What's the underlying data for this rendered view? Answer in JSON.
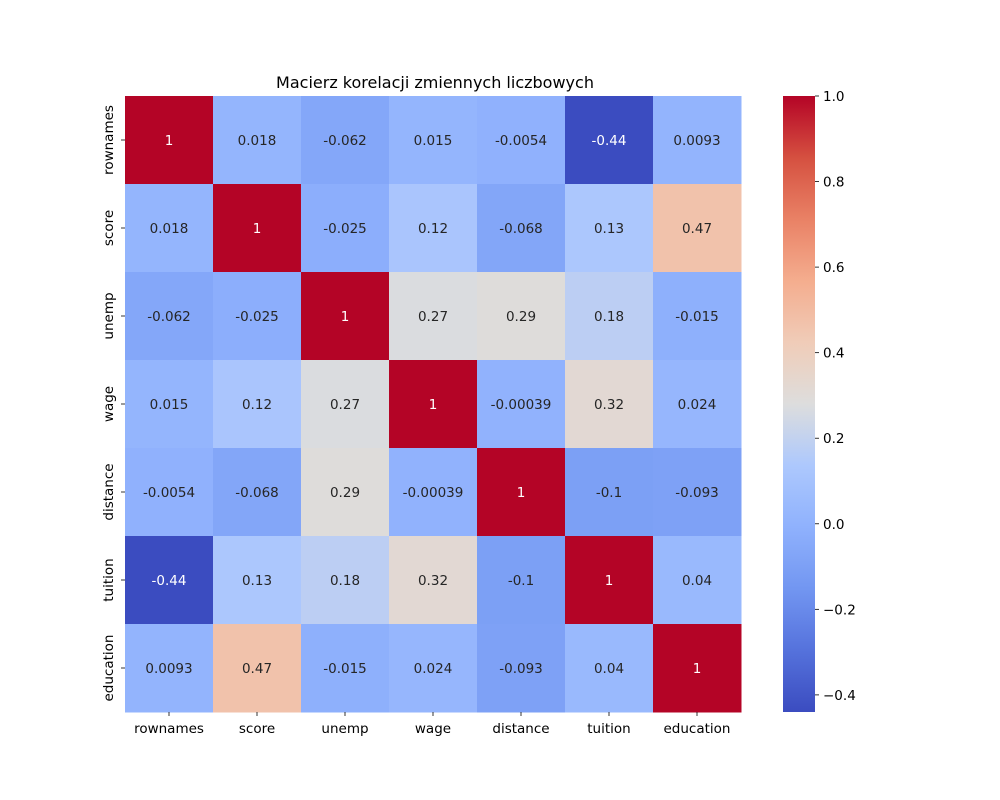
{
  "chart_data": {
    "type": "heatmap",
    "title": "Macierz korelacji zmiennych liczbowych",
    "xlabel": "",
    "ylabel": "",
    "categories": [
      "rownames",
      "score",
      "unemp",
      "wage",
      "distance",
      "tuition",
      "education"
    ],
    "values": [
      [
        1,
        0.018,
        -0.062,
        0.015,
        -0.0054,
        -0.44,
        0.0093
      ],
      [
        0.018,
        1,
        -0.025,
        0.12,
        -0.068,
        0.13,
        0.47
      ],
      [
        -0.062,
        -0.025,
        1,
        0.27,
        0.29,
        0.18,
        -0.015
      ],
      [
        0.015,
        0.12,
        0.27,
        1,
        -0.00039,
        0.32,
        0.024
      ],
      [
        -0.0054,
        -0.068,
        0.29,
        -0.00039,
        1,
        -0.1,
        -0.093
      ],
      [
        -0.44,
        0.13,
        0.18,
        0.32,
        -0.1,
        1,
        0.04
      ],
      [
        0.0093,
        0.47,
        -0.015,
        0.024,
        -0.093,
        0.04,
        1
      ]
    ],
    "colorscale": "coolwarm",
    "vmin": -0.44,
    "vmax": 1.0,
    "colorbar_ticks": [
      "1.0",
      "0.8",
      "0.6",
      "0.4",
      "0.2",
      "0.0",
      "−0.2",
      "−0.4"
    ],
    "colorbar_tick_values": [
      1.0,
      0.8,
      0.6,
      0.4,
      0.2,
      0.0,
      -0.2,
      -0.4
    ],
    "grid": false,
    "legend": "colorbar-right"
  }
}
